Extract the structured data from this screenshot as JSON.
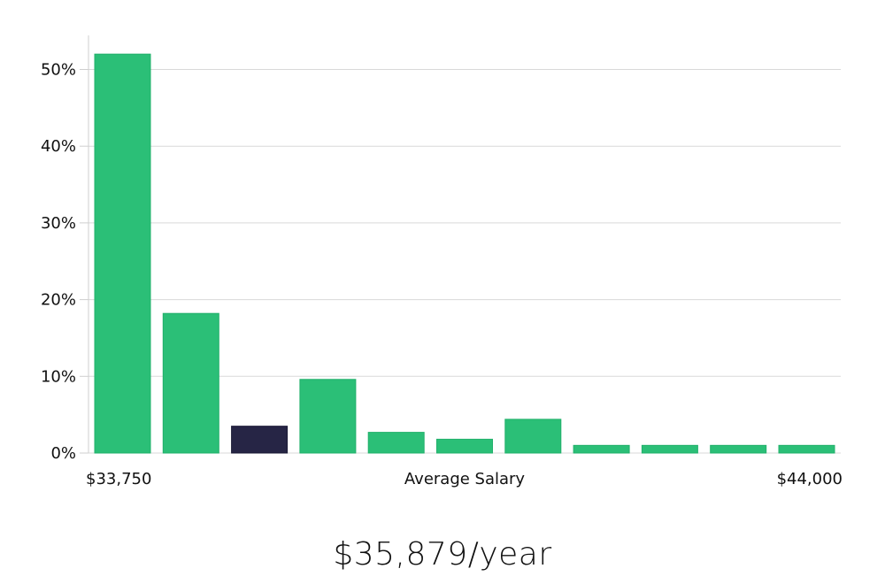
{
  "chart_data": {
    "type": "bar",
    "title": "",
    "xlabel": "Average Salary",
    "ylabel": "",
    "x_start_label": "$33,750",
    "x_end_label": "$44,000",
    "yticks": [
      "0%",
      "10%",
      "20%",
      "30%",
      "40%",
      "50%"
    ],
    "ylim": [
      0,
      54
    ],
    "grid": true,
    "values": [
      52,
      18.2,
      3.5,
      9.6,
      2.7,
      1.8,
      4.4,
      1,
      1,
      1,
      1
    ],
    "highlight_index": 2,
    "colors": {
      "bar": "#2bbf77",
      "highlight": "#262545"
    }
  },
  "salary_label": "$35,879/year"
}
